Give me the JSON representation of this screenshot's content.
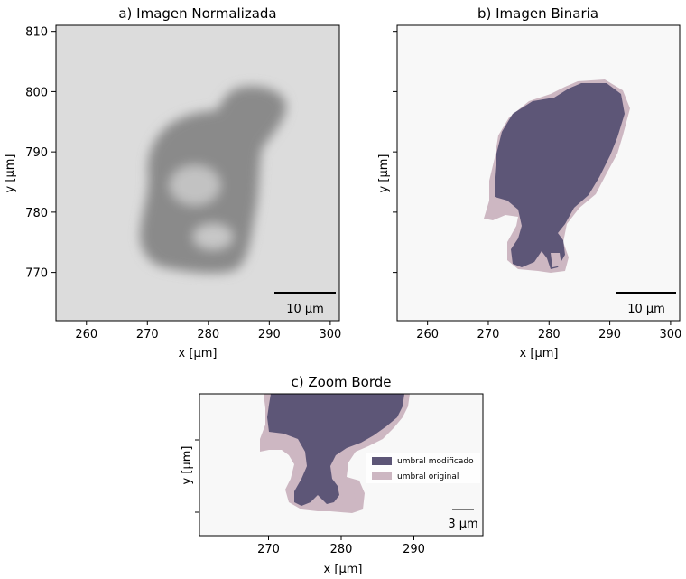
{
  "chart_data": [
    {
      "type": "heatmap",
      "title": "a) Imagen Normalizada",
      "xlabel": "x [µm]",
      "ylabel": "y [µm]",
      "xlim": [
        255,
        301.5
      ],
      "ylim": [
        762,
        811
      ],
      "xticks": [
        260,
        270,
        280,
        290,
        300
      ],
      "yticks": [
        770,
        780,
        790,
        800,
        810
      ],
      "colormap": "grayscale",
      "background_color": "#dcdcdc",
      "particle_color": "#8a8a8a",
      "scalebar": {
        "label": "10 µm",
        "length": 10
      }
    },
    {
      "type": "heatmap",
      "title": "b) Imagen Binaria",
      "xlabel": "x [µm]",
      "ylabel": "y [µm]",
      "xlim": [
        255,
        301.5
      ],
      "ylim": [
        762,
        811
      ],
      "xticks": [
        260,
        270,
        280,
        290,
        300
      ],
      "yticks": [
        770,
        780,
        790,
        800,
        810
      ],
      "colors": {
        "background": "#f8f8f8",
        "modified": "#5d5677",
        "original": "#cdb7c2"
      },
      "scalebar": {
        "label": "10 µm",
        "length": 10
      }
    },
    {
      "type": "heatmap",
      "title": "c) Zoom Borde",
      "xlabel": "x [µm]",
      "ylabel": "y [µm]",
      "xlim": [
        260.5,
        299.5
      ],
      "ylim": [
        765,
        784.5
      ],
      "xticks": [
        270,
        280,
        290
      ],
      "legend": {
        "position": "right",
        "entries": [
          {
            "label": "umbral modificado",
            "color": "#5d5677"
          },
          {
            "label": "umbral original",
            "color": "#cdb7c2"
          }
        ]
      },
      "scalebar": {
        "label": "3 µm",
        "length": 3
      }
    }
  ]
}
